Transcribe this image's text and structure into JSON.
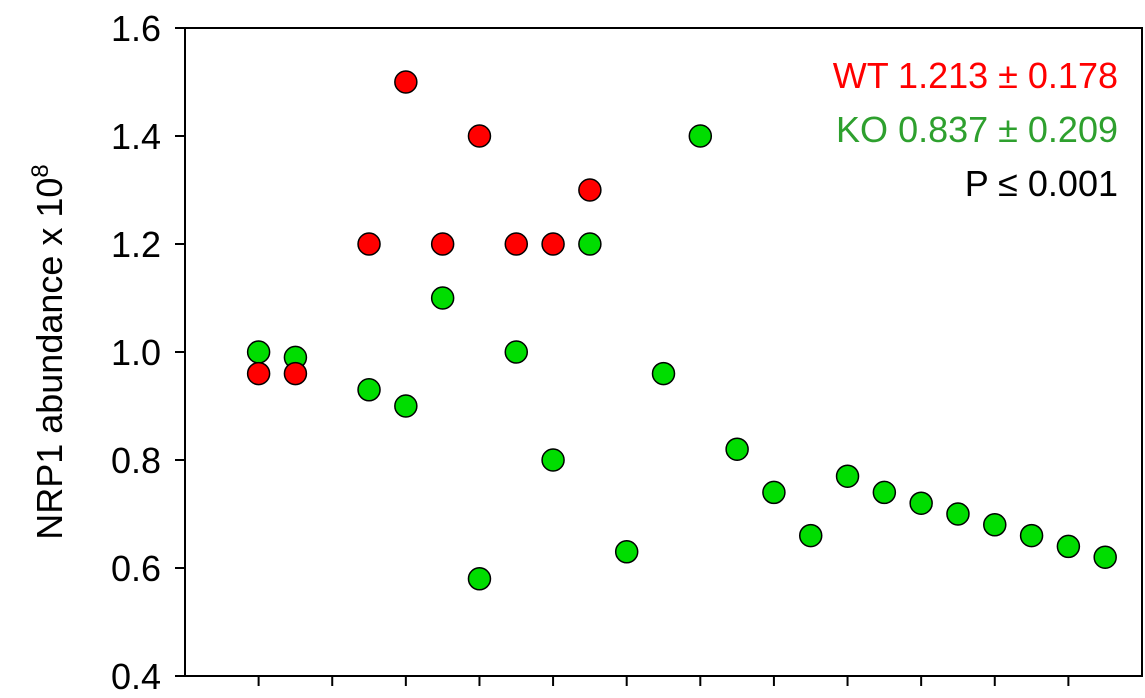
{
  "chart_data": {
    "type": "scatter",
    "ylabel": "NRP1 abundance x 10",
    "ylabel_superscript": "8",
    "ylim": [
      0.4,
      1.6
    ],
    "yticks": [
      "1.6",
      "1.4",
      "1.2",
      "1.0",
      "0.8",
      "0.6",
      "0.4"
    ],
    "xlim": [
      0,
      13
    ],
    "xticks": [
      1,
      2,
      3,
      4,
      5,
      6,
      7,
      8,
      9,
      10,
      11,
      12
    ],
    "grid": false,
    "legend_placement": "top-right",
    "annotations": [
      {
        "text": "WT 1.213 ± 0.178",
        "color": "#ff0000"
      },
      {
        "text": "KO 0.837 ± 0.209",
        "color": "#2ea02e"
      },
      {
        "text": "P ≤ 0.001",
        "color": "#000000"
      }
    ],
    "series": [
      {
        "id": "WT",
        "color": "#ff0000",
        "points": [
          {
            "x": 1.0,
            "y": 0.96
          },
          {
            "x": 1.5,
            "y": 0.96
          },
          {
            "x": 2.5,
            "y": 1.2
          },
          {
            "x": 3.0,
            "y": 1.5
          },
          {
            "x": 3.5,
            "y": 1.2
          },
          {
            "x": 4.0,
            "y": 1.4
          },
          {
            "x": 4.5,
            "y": 1.2
          },
          {
            "x": 5.0,
            "y": 1.2
          },
          {
            "x": 5.5,
            "y": 1.3
          }
        ]
      },
      {
        "id": "KO",
        "color": "#00dd00",
        "points": [
          {
            "x": 1.0,
            "y": 1.0
          },
          {
            "x": 1.5,
            "y": 0.99
          },
          {
            "x": 2.5,
            "y": 0.93
          },
          {
            "x": 3.0,
            "y": 0.9
          },
          {
            "x": 3.5,
            "y": 1.1
          },
          {
            "x": 4.0,
            "y": 0.58
          },
          {
            "x": 4.5,
            "y": 1.0
          },
          {
            "x": 5.0,
            "y": 0.8
          },
          {
            "x": 5.5,
            "y": 1.2
          },
          {
            "x": 6.0,
            "y": 0.63
          },
          {
            "x": 6.5,
            "y": 0.96
          },
          {
            "x": 7.0,
            "y": 1.4
          },
          {
            "x": 7.5,
            "y": 0.82
          },
          {
            "x": 8.0,
            "y": 0.74
          },
          {
            "x": 8.5,
            "y": 0.66
          },
          {
            "x": 9.0,
            "y": 0.77
          },
          {
            "x": 9.5,
            "y": 0.74
          },
          {
            "x": 10.0,
            "y": 0.72
          },
          {
            "x": 10.5,
            "y": 0.7
          },
          {
            "x": 11.0,
            "y": 0.68
          },
          {
            "x": 11.5,
            "y": 0.66
          },
          {
            "x": 12.0,
            "y": 0.64
          },
          {
            "x": 12.5,
            "y": 0.62
          }
        ]
      }
    ]
  }
}
